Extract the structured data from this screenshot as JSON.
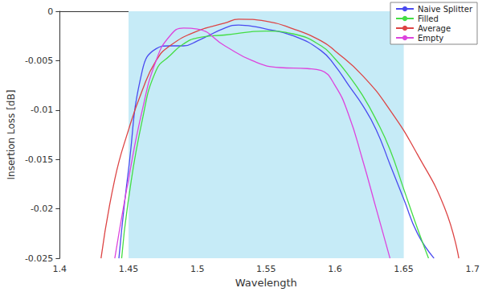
{
  "chart_data": {
    "type": "line",
    "x_label": "Wavelength",
    "y_label": "Insertion Loss [dB]",
    "xlim": [
      1.4,
      1.7
    ],
    "xticks": [
      1.4,
      1.45,
      1.5,
      1.55,
      1.6,
      1.65,
      1.7
    ],
    "ylim": [
      -0.025,
      0
    ],
    "yticks": [
      -0.025,
      -0.02,
      -0.015,
      -0.01,
      -0.005,
      0
    ],
    "grid": false,
    "legend": "top-right",
    "band": [
      1.45,
      1.65
    ],
    "series": [
      {
        "name": "Naive Splitter",
        "color": "#4a4af0",
        "x": [
          1.443,
          1.45,
          1.46,
          1.47,
          1.48,
          1.49,
          1.5,
          1.52,
          1.53,
          1.55,
          1.57,
          1.59,
          1.6,
          1.61,
          1.62,
          1.63,
          1.64,
          1.65,
          1.66,
          1.672
        ],
        "values": [
          -0.025,
          -0.016,
          -0.006,
          -0.0038,
          -0.0035,
          -0.0035,
          -0.003,
          -0.0017,
          -0.0014,
          -0.0018,
          -0.0025,
          -0.004,
          -0.0055,
          -0.0075,
          -0.0095,
          -0.012,
          -0.0155,
          -0.019,
          -0.0225,
          -0.025
        ]
      },
      {
        "name": "Filled",
        "color": "#44dd44",
        "x": [
          1.445,
          1.45,
          1.46,
          1.47,
          1.48,
          1.49,
          1.5,
          1.52,
          1.55,
          1.57,
          1.59,
          1.6,
          1.61,
          1.62,
          1.63,
          1.64,
          1.65,
          1.66,
          1.668
        ],
        "values": [
          -0.025,
          -0.019,
          -0.011,
          -0.006,
          -0.0045,
          -0.0033,
          -0.0027,
          -0.0024,
          -0.002,
          -0.0023,
          -0.0035,
          -0.0048,
          -0.0065,
          -0.0085,
          -0.011,
          -0.014,
          -0.018,
          -0.022,
          -0.025
        ]
      },
      {
        "name": "Average",
        "color": "#dd4444",
        "x": [
          1.43,
          1.44,
          1.45,
          1.46,
          1.47,
          1.48,
          1.5,
          1.52,
          1.53,
          1.55,
          1.57,
          1.59,
          1.6,
          1.62,
          1.64,
          1.66,
          1.68,
          1.69
        ],
        "values": [
          -0.025,
          -0.017,
          -0.012,
          -0.008,
          -0.005,
          -0.0035,
          -0.002,
          -0.0012,
          -0.0008,
          -0.001,
          -0.0018,
          -0.003,
          -0.004,
          -0.0065,
          -0.01,
          -0.0145,
          -0.02,
          -0.025
        ]
      },
      {
        "name": "Empty",
        "color": "#dd44dd",
        "x": [
          1.44,
          1.45,
          1.46,
          1.47,
          1.48,
          1.49,
          1.5,
          1.52,
          1.54,
          1.56,
          1.58,
          1.59,
          1.6,
          1.61,
          1.62,
          1.63,
          1.64
        ],
        "values": [
          -0.025,
          -0.017,
          -0.01,
          -0.005,
          -0.0025,
          -0.0017,
          -0.0018,
          -0.0035,
          -0.005,
          -0.0057,
          -0.0058,
          -0.006,
          -0.0075,
          -0.0105,
          -0.015,
          -0.02,
          -0.025
        ]
      }
    ]
  }
}
